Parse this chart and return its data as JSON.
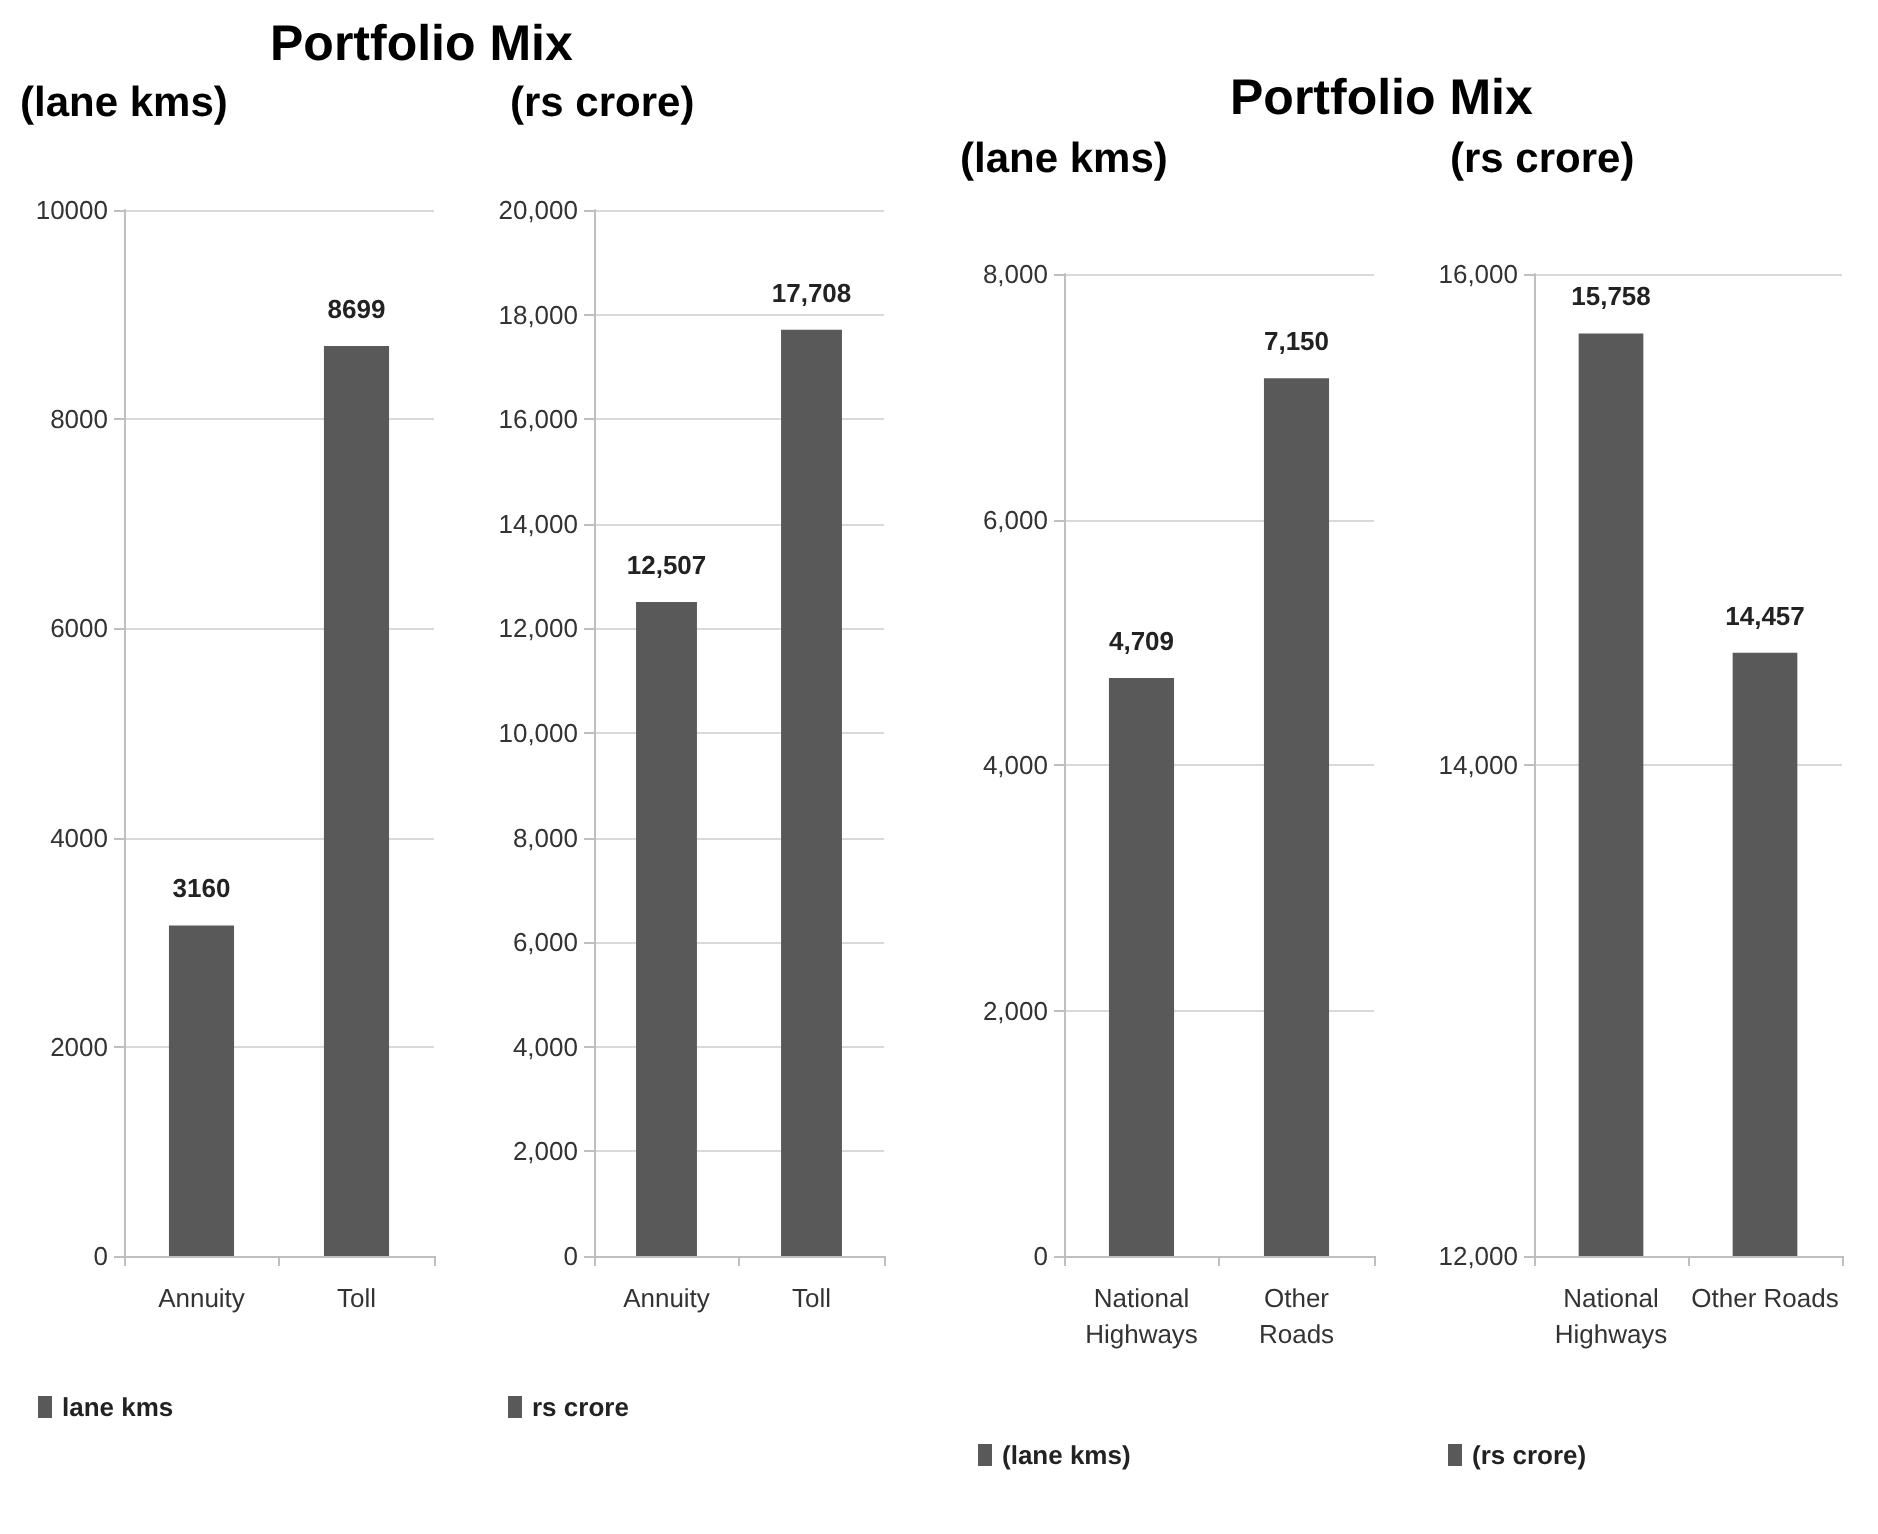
{
  "chart_data": [
    {
      "type": "bar",
      "title": "Portfolio Mix",
      "subtitle": "(lane kms)",
      "categories": [
        "Annuity",
        "Toll"
      ],
      "series": [
        {
          "name": "lane kms",
          "color": "#595959",
          "values": [
            3160,
            8699
          ],
          "value_labels": [
            "3160",
            "8699"
          ]
        }
      ],
      "ylim": [
        0,
        10000
      ],
      "yticks": [
        0,
        2000,
        4000,
        6000,
        8000,
        10000
      ],
      "grid": "y",
      "legend": "bottom left"
    },
    {
      "type": "bar",
      "subtitle": "(rs crore)",
      "categories": [
        "Annuity",
        "Toll"
      ],
      "series": [
        {
          "name": "rs crore",
          "color": "#595959",
          "values": [
            12507,
            17708
          ],
          "value_labels": [
            "12,507",
            "17,708"
          ]
        }
      ],
      "ylim": [
        0,
        20000
      ],
      "yticks": [
        0,
        {
          "value": 2000,
          "label": "2,000"
        },
        {
          "value": 4000,
          "label": "4,000"
        },
        {
          "value": 6000,
          "label": "6,000"
        },
        {
          "value": 8000,
          "label": "8,000"
        },
        {
          "value": 10000,
          "label": "10,000"
        },
        {
          "value": 12000,
          "label": "12,000"
        },
        {
          "value": 14000,
          "label": "14,000"
        },
        {
          "value": 16000,
          "label": "16,000"
        },
        {
          "value": 18000,
          "label": "18,000"
        },
        {
          "value": 20000,
          "label": "20,000"
        }
      ],
      "grid": "y",
      "legend": "bottom left"
    },
    {
      "type": "bar",
      "title": "Portfolio Mix",
      "subtitle": "(lane kms)",
      "categories": [
        "National\nHighways",
        "Other\nRoads"
      ],
      "series": [
        {
          "name": "(lane kms)",
          "color": "#595959",
          "values": [
            4709,
            7150
          ],
          "value_labels": [
            "4,709",
            "7,150"
          ]
        }
      ],
      "ylim": [
        0,
        8000
      ],
      "yticks": [
        0,
        {
          "value": 2000,
          "label": "2,000"
        },
        {
          "value": 4000,
          "label": "4,000"
        },
        {
          "value": 6000,
          "label": "6,000"
        },
        {
          "value": 8000,
          "label": "8,000"
        }
      ],
      "grid": "y",
      "legend": "bottom left"
    },
    {
      "type": "bar",
      "subtitle": "(rs crore)",
      "categories": [
        "National\nHighways",
        "Other Roads"
      ],
      "series": [
        {
          "name": "(rs crore)",
          "color": "#595959",
          "values": [
            15758,
            14457
          ],
          "value_labels": [
            "15,758",
            "14,457"
          ]
        }
      ],
      "ylim": [
        12000,
        16000
      ],
      "yticks": [
        {
          "value": 12000,
          "label": "12,000"
        },
        {
          "value": 14000,
          "label": "14,000"
        },
        {
          "value": 16000,
          "label": "16,000"
        }
      ],
      "grid": "y",
      "legend": "bottom left"
    }
  ]
}
